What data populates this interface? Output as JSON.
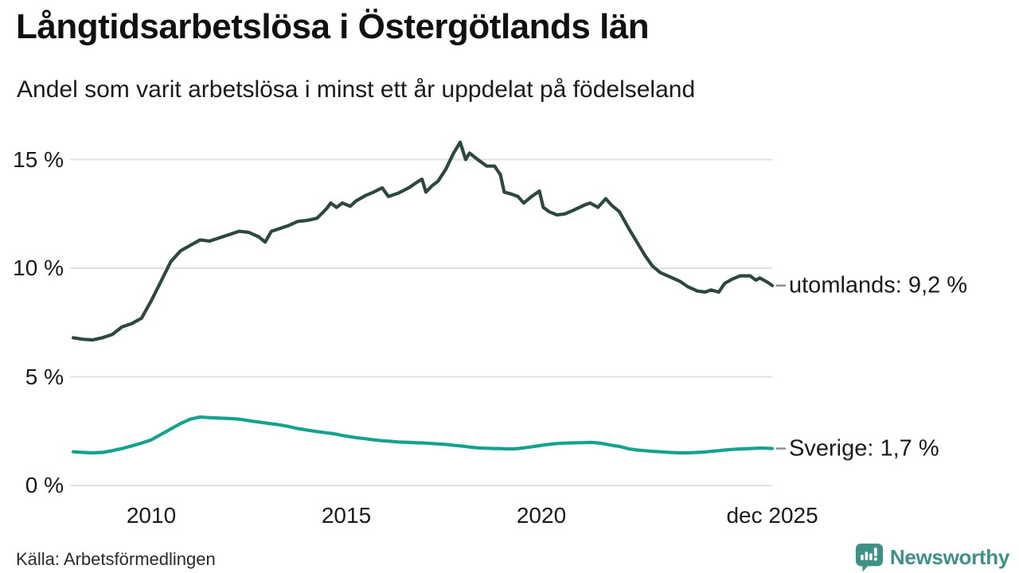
{
  "header": {
    "title": "Långtidsarbetslösa i Östergötlands län",
    "subtitle": "Andel som varit arbetslösa i minst ett år uppdelat på födelseland"
  },
  "footer": {
    "source": "Källa: Arbetsförmedlingen",
    "brand": "Newsworthy",
    "brand_icon": "newsworthy-speech-bubble-bar-chart-icon"
  },
  "colors": {
    "series_utomlands": "#2b4a3d",
    "series_sverige": "#17a28f",
    "grid": "#e1e1e1",
    "end_tick": "#8f8f8f",
    "text": "#1a1a1a",
    "brand": "#3d9187"
  },
  "axes": {
    "y_ticks": [
      "0 %",
      "5 %",
      "10 %",
      "15 %"
    ],
    "x_ticks": [
      "2010",
      "2015",
      "2020",
      "dec 2025"
    ]
  },
  "series_labels": {
    "utomlands": "utomlands: 9,2 %",
    "sverige": "Sverige: 1,7 %"
  },
  "chart_data": {
    "type": "line",
    "title": "Långtidsarbetslösa i Östergötlands län",
    "subtitle": "Andel som varit arbetslösa i minst ett år uppdelat på födelseland",
    "source": "Källa: Arbetsförmedlingen",
    "unit": "%",
    "x_unit": "decimal_year_monthly_data",
    "xlim": [
      2008.0,
      2025.92
    ],
    "ylim": [
      0,
      16.3
    ],
    "grid": "horizontal",
    "legend_position": "right-end-labels",
    "yticks": [
      0,
      5,
      10,
      15
    ],
    "xticks": [
      {
        "x": 2010,
        "label": "2010"
      },
      {
        "x": 2015,
        "label": "2015"
      },
      {
        "x": 2020,
        "label": "2020"
      },
      {
        "x": 2025.92,
        "label": "dec 2025"
      }
    ],
    "x": [
      2008.0,
      2008.25,
      2008.5,
      2008.75,
      2009.0,
      2009.25,
      2009.5,
      2009.75,
      2010.0,
      2010.25,
      2010.5,
      2010.75,
      2011.0,
      2011.25,
      2011.5,
      2011.75,
      2012.0,
      2012.25,
      2012.5,
      2012.75,
      2012.92,
      2013.08,
      2013.25,
      2013.5,
      2013.75,
      2014.0,
      2014.25,
      2014.5,
      2014.6,
      2014.75,
      2014.9,
      2015.1,
      2015.25,
      2015.5,
      2015.7,
      2015.92,
      2016.08,
      2016.33,
      2016.6,
      2016.85,
      2016.94,
      2017.04,
      2017.2,
      2017.35,
      2017.55,
      2017.75,
      2017.92,
      2018.06,
      2018.16,
      2018.37,
      2018.6,
      2018.8,
      2018.95,
      2019.05,
      2019.25,
      2019.4,
      2019.55,
      2019.75,
      2019.95,
      2020.05,
      2020.2,
      2020.4,
      2020.6,
      2020.8,
      2021.1,
      2021.25,
      2021.45,
      2021.65,
      2021.8,
      2022.0,
      2022.25,
      2022.45,
      2022.65,
      2022.85,
      2023.05,
      2023.3,
      2023.55,
      2023.75,
      2024.0,
      2024.2,
      2024.35,
      2024.55,
      2024.7,
      2024.9,
      2025.1,
      2025.35,
      2025.5,
      2025.6,
      2025.8,
      2025.92
    ],
    "series": [
      {
        "name": "utomlands",
        "end_label": "utomlands: 9,2 %",
        "last_value": 9.2,
        "color": "#2b4a3d",
        "values": [
          6.8,
          6.73,
          6.7,
          6.8,
          6.95,
          7.3,
          7.45,
          7.7,
          8.5,
          9.4,
          10.3,
          10.8,
          11.05,
          11.3,
          11.25,
          11.4,
          11.55,
          11.7,
          11.65,
          11.45,
          11.2,
          11.7,
          11.8,
          11.95,
          12.15,
          12.2,
          12.3,
          12.75,
          13.0,
          12.8,
          13.0,
          12.85,
          13.1,
          13.35,
          13.5,
          13.7,
          13.3,
          13.45,
          13.7,
          14.0,
          14.1,
          13.5,
          13.8,
          14.0,
          14.55,
          15.3,
          15.8,
          15.0,
          15.3,
          15.0,
          14.7,
          14.7,
          14.3,
          13.5,
          13.4,
          13.3,
          13.0,
          13.3,
          13.55,
          12.8,
          12.6,
          12.45,
          12.5,
          12.65,
          12.9,
          13.0,
          12.8,
          13.2,
          12.9,
          12.6,
          11.8,
          11.2,
          10.6,
          10.1,
          9.8,
          9.6,
          9.4,
          9.15,
          8.95,
          8.9,
          9.0,
          8.9,
          9.3,
          9.5,
          9.65,
          9.65,
          9.45,
          9.55,
          9.35,
          9.2
        ]
      },
      {
        "name": "Sverige",
        "end_label": "Sverige: 1,7 %",
        "last_value": 1.7,
        "color": "#17a28f",
        "values": [
          1.55,
          1.52,
          1.5,
          1.52,
          1.6,
          1.7,
          1.82,
          1.95,
          2.1,
          2.35,
          2.6,
          2.85,
          3.05,
          3.15,
          3.12,
          3.1,
          3.08,
          3.05,
          2.98,
          2.92,
          2.88,
          2.84,
          2.8,
          2.72,
          2.62,
          2.55,
          2.48,
          2.42,
          2.4,
          2.36,
          2.3,
          2.24,
          2.2,
          2.15,
          2.1,
          2.06,
          2.04,
          2.0,
          1.98,
          1.96,
          1.96,
          1.95,
          1.93,
          1.91,
          1.89,
          1.85,
          1.82,
          1.79,
          1.77,
          1.73,
          1.71,
          1.7,
          1.7,
          1.69,
          1.68,
          1.7,
          1.73,
          1.78,
          1.83,
          1.86,
          1.89,
          1.93,
          1.95,
          1.96,
          1.97,
          1.98,
          1.96,
          1.9,
          1.85,
          1.8,
          1.68,
          1.63,
          1.6,
          1.57,
          1.55,
          1.52,
          1.5,
          1.5,
          1.52,
          1.54,
          1.57,
          1.6,
          1.63,
          1.66,
          1.68,
          1.7,
          1.71,
          1.72,
          1.71,
          1.7
        ]
      }
    ]
  }
}
